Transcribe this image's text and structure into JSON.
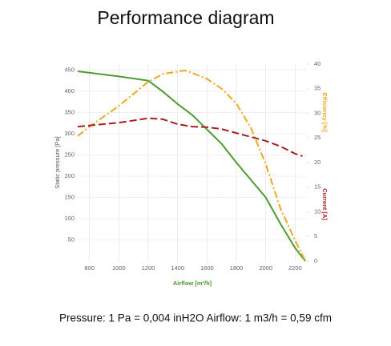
{
  "chart_data": {
    "type": "line",
    "title": "Performance diagram",
    "xlabel": "Airflow [m³/h]",
    "xlabel_color": "#4a9a2a",
    "caption": "Pressure: 1 Pa = 0,004 inH2O Airflow: 1 m3/h = 0,59 cfm",
    "xlim": [
      720,
      2280
    ],
    "xticks": [
      800,
      1000,
      1200,
      1400,
      1600,
      1800,
      2000,
      2200
    ],
    "ylim": [
      0,
      464
    ],
    "yticks": [
      50,
      100,
      150,
      200,
      250,
      300,
      350,
      400,
      450
    ],
    "y2lim": [
      0,
      40
    ],
    "y2ticks": [
      0,
      5,
      10,
      15,
      20,
      25,
      30,
      35,
      40
    ],
    "grid": true,
    "series": [
      {
        "name": "Static pressure [Pa]",
        "color": "#4a9e2f",
        "dash": "solid",
        "axis": "y",
        "x": [
          720,
          1000,
          1200,
          1300,
          1400,
          1500,
          1600,
          1700,
          1800,
          1900,
          2000,
          2100,
          2200,
          2270
        ],
        "values": [
          447,
          435,
          425,
          399,
          370,
          344,
          310,
          276,
          232,
          191,
          150,
          88,
          31,
          0
        ]
      },
      {
        "name": "Efficiency [%]",
        "color": "#f0a81e",
        "dash": "dashdot",
        "axis": "y2",
        "x": [
          720,
          800,
          1000,
          1200,
          1300,
          1450,
          1500,
          1600,
          1700,
          1800,
          1900,
          2000,
          2100,
          2200,
          2270
        ],
        "values": [
          25.4,
          27.3,
          31.5,
          36.4,
          38,
          38.7,
          38.2,
          37,
          35,
          32,
          27,
          19.7,
          10.7,
          4.2,
          0
        ]
      },
      {
        "name": "Current [A]",
        "color": "#a8201c",
        "dash": "dashed",
        "axis": "y2",
        "x": [
          720,
          1000,
          1200,
          1300,
          1400,
          1500,
          1600,
          1700,
          1800,
          1900,
          2000,
          2100,
          2200,
          2250
        ],
        "values": [
          27.3,
          28.1,
          29,
          28.8,
          27.8,
          27.3,
          27.2,
          26.8,
          26,
          25.2,
          24.4,
          23.3,
          21.8,
          21.3
        ]
      }
    ]
  }
}
